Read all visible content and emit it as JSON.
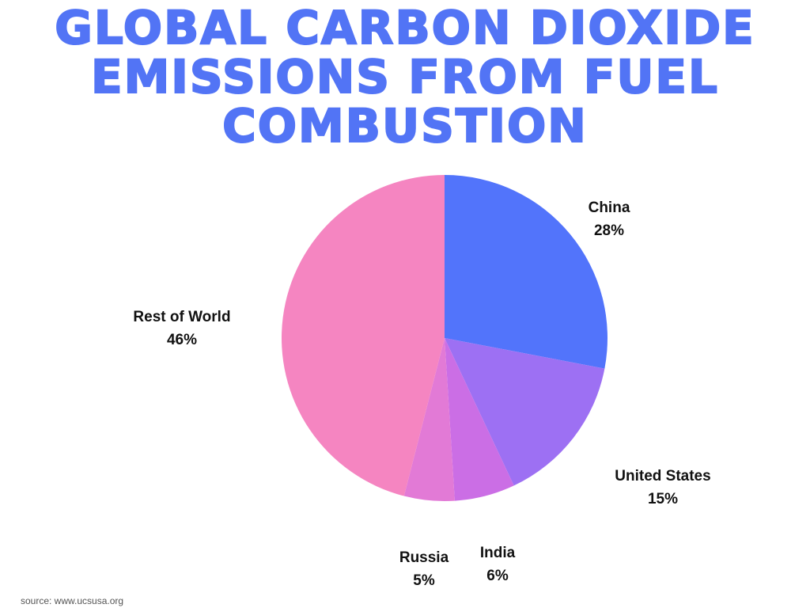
{
  "chart_data": {
    "type": "pie",
    "title_lines": [
      "GLOBAL CARBON DIOXIDE",
      "EMISSIONS FROM FUEL",
      "COMBUSTION"
    ],
    "slices": [
      {
        "label": "China",
        "value": 28,
        "display": "28%",
        "color": "#5274fb"
      },
      {
        "label": "United States",
        "value": 15,
        "display": "15%",
        "color": "#9d70f3"
      },
      {
        "label": "India",
        "value": 6,
        "display": "6%",
        "color": "#cb6ee5"
      },
      {
        "label": "Russia",
        "value": 5,
        "display": "5%",
        "color": "#e27ad6"
      },
      {
        "label": "Rest of World",
        "value": 46,
        "display": "46%",
        "color": "#f585c1"
      }
    ],
    "start_angle": "12 o'clock",
    "direction": "clockwise"
  },
  "source": "source: www.ucsusa.org"
}
